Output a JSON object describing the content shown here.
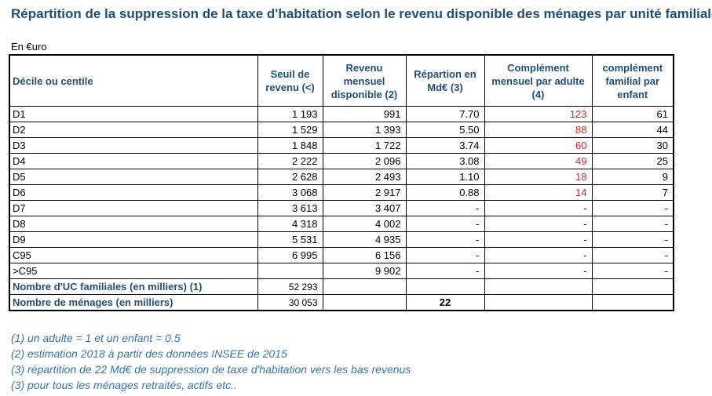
{
  "title": "Répartition de la suppression de la taxe d'habitation selon le revenu disponible des ménages par unité familiale",
  "unit": "En €uro",
  "headers": {
    "decile": "Décile ou centile",
    "seuil": "Seuil de revenu (<)",
    "revenu": "Revenu mensuel disponible (2)",
    "repartition": "Répartion en Md€ (3)",
    "complement_adulte": "Complément mensuel par adulte (4)",
    "complement_enfant": "complément familial par enfant"
  },
  "rows": [
    {
      "decile": "D1",
      "seuil": "1 193",
      "revenu": "991",
      "repartition": "7.70",
      "adulte": "123",
      "enfant": "61"
    },
    {
      "decile": "D2",
      "seuil": "1 529",
      "revenu": "1 393",
      "repartition": "5.50",
      "adulte": "88",
      "enfant": "44"
    },
    {
      "decile": "D3",
      "seuil": "1 848",
      "revenu": "1 722",
      "repartition": "3.74",
      "adulte": "60",
      "enfant": "30"
    },
    {
      "decile": "D4",
      "seuil": "2 222",
      "revenu": "2 096",
      "repartition": "3.08",
      "adulte": "49",
      "enfant": "25"
    },
    {
      "decile": "D5",
      "seuil": "2 628",
      "revenu": "2 493",
      "repartition": "1.10",
      "adulte": "18",
      "enfant": "9"
    },
    {
      "decile": "D6",
      "seuil": "3 068",
      "revenu": "2 917",
      "repartition": "0.88",
      "adulte": "14",
      "enfant": "7"
    },
    {
      "decile": "D7",
      "seuil": "3 613",
      "revenu": "3 407",
      "repartition": "-",
      "adulte": "-",
      "enfant": "-"
    },
    {
      "decile": "D8",
      "seuil": "4 318",
      "revenu": "4 002",
      "repartition": "-",
      "adulte": "-",
      "enfant": "-"
    },
    {
      "decile": "D9",
      "seuil": "5 531",
      "revenu": "4 935",
      "repartition": "-",
      "adulte": "-",
      "enfant": "-"
    },
    {
      "decile": "C95",
      "seuil": "6 995",
      "revenu": "6 156",
      "repartition": "-",
      "adulte": "-",
      "enfant": "-"
    },
    {
      "decile": ">C95",
      "seuil": "",
      "revenu": "9 902",
      "repartition": "-",
      "adulte": "-",
      "enfant": "-"
    }
  ],
  "footer": {
    "uc_label": "Nombre d'UC familiales (en milliers) (1)",
    "uc_value": "52 293",
    "menages_label": "Nombre de ménages (en milliers)",
    "menages_value": "30 053",
    "total_repartition": "22"
  },
  "notes": [
    "(1)  un adulte = 1 et un enfant = 0.5",
    "(2)  estimation 2018 à partir des données INSEE de 2015",
    "(3)  répartition de 22 Md€ de suppression de taxe d'habitation vers les bas revenus",
    "(3)  pour tous les ménages retraités, actifs etc.."
  ],
  "colors": {
    "title": "#1f4e79",
    "highlight": "#e02020",
    "notes": "#2e75b6"
  }
}
